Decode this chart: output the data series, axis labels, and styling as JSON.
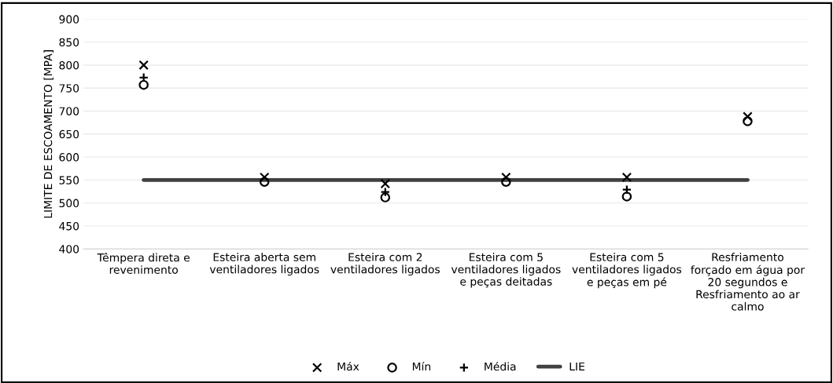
{
  "chart_data": {
    "type": "scatter",
    "ylabel": "LIMITE DE ESCOAMENTO [MPA]",
    "categories": [
      "Têmpera direta e\nrevenimento",
      "Esteira aberta sem\nventiladores ligados",
      "Esteira com 2\nventiladores ligados",
      "Esteira com 5\nventiladores ligados\ne peças deitadas",
      "Esteira com 5\nventiladores ligados\ne peças em pé",
      "Resfriamento\nforçado em água por\n20 segundos e\nResfriamento ao ar\ncalmo"
    ],
    "series": [
      {
        "name": "Máx",
        "color": "#000000",
        "marker": "cross",
        "values": [
          800,
          556,
          542,
          556,
          556,
          688
        ]
      },
      {
        "name": "Mín",
        "color": "#000000",
        "marker": "circle",
        "values": [
          757,
          546,
          512,
          546,
          514,
          678
        ]
      },
      {
        "name": "Média",
        "color": "#000000",
        "marker": "plus",
        "values": [
          773,
          null,
          524,
          null,
          529,
          null
        ]
      },
      {
        "name": "LIE",
        "color": "#404040",
        "type": "line",
        "marker": "none",
        "values": [
          550,
          550,
          550,
          550,
          550,
          550
        ]
      }
    ],
    "ylim": [
      400,
      900
    ],
    "yticks": [
      400,
      450,
      500,
      550,
      600,
      650,
      700,
      750,
      800,
      850,
      900
    ],
    "grid": "y",
    "legend": "bottom"
  }
}
